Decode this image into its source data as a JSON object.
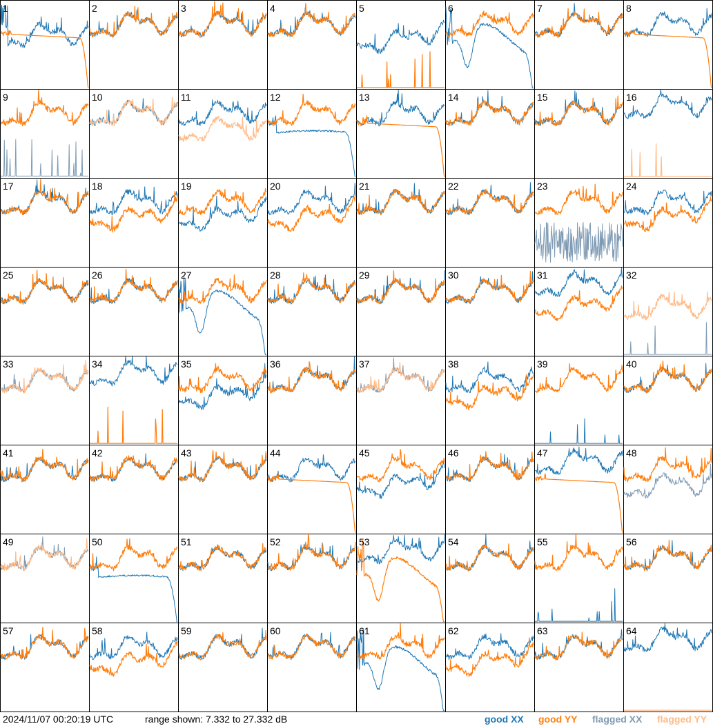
{
  "chart_data": {
    "type": "line",
    "panels": [
      {
        "label": "1",
        "xx": "drop",
        "yy": "rolloff"
      },
      {
        "label": "2",
        "xx": "normal",
        "yy": "normal"
      },
      {
        "label": "3",
        "xx": "normal",
        "yy": "normal"
      },
      {
        "label": "4",
        "xx": "normal",
        "yy": "normal"
      },
      {
        "label": "5",
        "xx": "low",
        "yy": "flat_bottom"
      },
      {
        "label": "6",
        "xx": "deep_dip",
        "yy": "high"
      },
      {
        "label": "7",
        "xx": "normal",
        "yy": "normal"
      },
      {
        "label": "8",
        "xx": "normal",
        "yy": "rolloff"
      },
      {
        "label": "9",
        "xx": "flagged_spikes",
        "yy": "normal"
      },
      {
        "label": "10",
        "xx": "normal",
        "yy": "flagged"
      },
      {
        "label": "11",
        "xx": "normal",
        "yy": "flagged_low"
      },
      {
        "label": "12",
        "xx": "falloff",
        "yy": "normal"
      },
      {
        "label": "13",
        "xx": "normal",
        "yy": "rolloff"
      },
      {
        "label": "14",
        "xx": "normal",
        "yy": "normal"
      },
      {
        "label": "15",
        "xx": "normal",
        "yy": "normal"
      },
      {
        "label": "16",
        "xx": "normal_high",
        "yy": "flagged_flat"
      },
      {
        "label": "17",
        "xx": "normal",
        "yy": "normal"
      },
      {
        "label": "18",
        "xx": "normal",
        "yy": "low"
      },
      {
        "label": "19",
        "xx": "low",
        "yy": "normal"
      },
      {
        "label": "20",
        "xx": "normal",
        "yy": "low"
      },
      {
        "label": "21",
        "xx": "normal",
        "yy": "normal"
      },
      {
        "label": "22",
        "xx": "normal",
        "yy": "normal"
      },
      {
        "label": "23",
        "xx": "flagged_noise",
        "yy": "normal"
      },
      {
        "label": "24",
        "xx": "normal",
        "yy": "low"
      },
      {
        "label": "25",
        "xx": "normal",
        "yy": "normal"
      },
      {
        "label": "26",
        "xx": "normal",
        "yy": "normal"
      },
      {
        "label": "27",
        "xx": "deep_dip",
        "yy": "normal"
      },
      {
        "label": "28",
        "xx": "normal",
        "yy": "normal"
      },
      {
        "label": "29",
        "xx": "normal",
        "yy": "normal"
      },
      {
        "label": "30",
        "xx": "normal",
        "yy": "normal"
      },
      {
        "label": "31",
        "xx": "normal_high",
        "yy": "low"
      },
      {
        "label": "32",
        "xx": "flagged_flat",
        "yy": "flagged_low"
      },
      {
        "label": "33",
        "xx": "flagged",
        "yy": "flagged"
      },
      {
        "label": "34",
        "xx": "normal_high",
        "yy": "flat_bottom"
      },
      {
        "label": "35",
        "xx": "low",
        "yy": "normal"
      },
      {
        "label": "36",
        "xx": "normal",
        "yy": "normal"
      },
      {
        "label": "37",
        "xx": "flagged",
        "yy": "flagged"
      },
      {
        "label": "38",
        "xx": "normal",
        "yy": "low"
      },
      {
        "label": "39",
        "xx": "flat_bottom",
        "yy": "normal"
      },
      {
        "label": "40",
        "xx": "normal",
        "yy": "normal"
      },
      {
        "label": "41",
        "xx": "normal",
        "yy": "normal"
      },
      {
        "label": "42",
        "xx": "normal",
        "yy": "normal"
      },
      {
        "label": "43",
        "xx": "normal",
        "yy": "normal"
      },
      {
        "label": "44",
        "xx": "normal",
        "yy": "rolloff"
      },
      {
        "label": "45",
        "xx": "low",
        "yy": "normal"
      },
      {
        "label": "46",
        "xx": "normal",
        "yy": "normal"
      },
      {
        "label": "47",
        "xx": "normal_high",
        "yy": "rolloff"
      },
      {
        "label": "48",
        "xx": "flagged_low",
        "yy": "normal"
      },
      {
        "label": "49",
        "xx": "flagged",
        "yy": "flagged"
      },
      {
        "label": "50",
        "xx": "falloff",
        "yy": "normal"
      },
      {
        "label": "51",
        "xx": "normal",
        "yy": "normal"
      },
      {
        "label": "52",
        "xx": "normal",
        "yy": "normal"
      },
      {
        "label": "53",
        "xx": "normal_high",
        "yy": "deep_dip"
      },
      {
        "label": "54",
        "xx": "normal",
        "yy": "normal"
      },
      {
        "label": "55",
        "xx": "flat_bottom",
        "yy": "normal"
      },
      {
        "label": "56",
        "xx": "normal",
        "yy": "normal"
      },
      {
        "label": "57",
        "xx": "normal",
        "yy": "normal"
      },
      {
        "label": "58",
        "xx": "normal",
        "yy": "low"
      },
      {
        "label": "59",
        "xx": "normal",
        "yy": "normal"
      },
      {
        "label": "60",
        "xx": "normal",
        "yy": "normal"
      },
      {
        "label": "61",
        "xx": "deep_dip",
        "yy": "normal"
      },
      {
        "label": "62",
        "xx": "normal",
        "yy": "low"
      },
      {
        "label": "63",
        "xx": "normal",
        "yy": "normal"
      },
      {
        "label": "64",
        "xx": "normal_high",
        "yy": "flagged_flat"
      }
    ],
    "ylim": [
      7.332,
      27.332
    ],
    "grid": false,
    "legend_position": "bottom-right"
  },
  "footer": {
    "timestamp": "2024/11/07 00:20:19 UTC",
    "range": "range shown: 7.332 to 27.332 dB"
  },
  "legend": [
    {
      "label": "good XX",
      "color": "#1f77b4"
    },
    {
      "label": "good YY",
      "color": "#ff7f0e"
    },
    {
      "label": "flagged XX",
      "color": "#7f9bb4"
    },
    {
      "label": "flagged YY",
      "color": "#ffbb88"
    }
  ]
}
